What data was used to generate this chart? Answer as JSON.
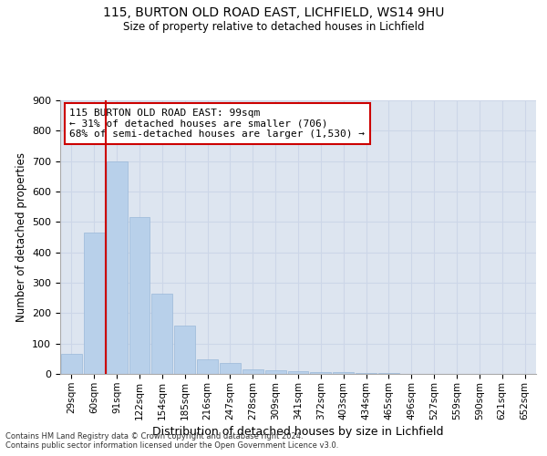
{
  "title1": "115, BURTON OLD ROAD EAST, LICHFIELD, WS14 9HU",
  "title2": "Size of property relative to detached houses in Lichfield",
  "xlabel": "Distribution of detached houses by size in Lichfield",
  "ylabel": "Number of detached properties",
  "categories": [
    "29sqm",
    "60sqm",
    "91sqm",
    "122sqm",
    "154sqm",
    "185sqm",
    "216sqm",
    "247sqm",
    "278sqm",
    "309sqm",
    "341sqm",
    "372sqm",
    "403sqm",
    "434sqm",
    "465sqm",
    "496sqm",
    "527sqm",
    "559sqm",
    "590sqm",
    "621sqm",
    "652sqm"
  ],
  "values": [
    65,
    465,
    700,
    515,
    265,
    160,
    48,
    35,
    16,
    13,
    10,
    6,
    5,
    4,
    2,
    1,
    0,
    0,
    0,
    0,
    0
  ],
  "bar_color": "#b8d0ea",
  "bar_edge_color": "#9ab8d8",
  "vline_color": "#cc0000",
  "vline_x_index": 2,
  "annotation_text": "115 BURTON OLD ROAD EAST: 99sqm\n← 31% of detached houses are smaller (706)\n68% of semi-detached houses are larger (1,530) →",
  "annotation_box_color": "white",
  "annotation_box_edge_color": "#cc0000",
  "grid_color": "#ccd6e8",
  "background_color": "#dde5f0",
  "ylim": [
    0,
    900
  ],
  "yticks": [
    0,
    100,
    200,
    300,
    400,
    500,
    600,
    700,
    800,
    900
  ],
  "footer1": "Contains HM Land Registry data © Crown copyright and database right 2024.",
  "footer2": "Contains public sector information licensed under the Open Government Licence v3.0."
}
